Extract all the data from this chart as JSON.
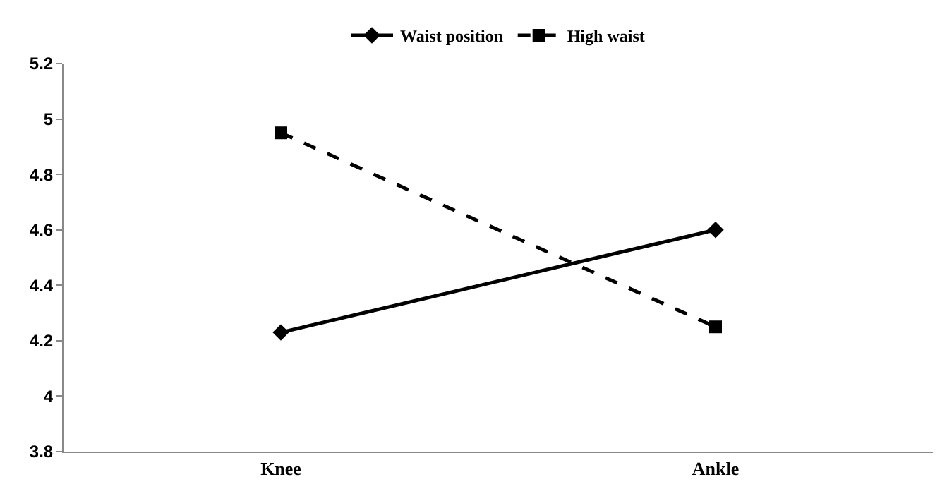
{
  "chart_data": {
    "type": "line",
    "categories": [
      "Knee",
      "Ankle"
    ],
    "series": [
      {
        "name": "Waist position",
        "color": "#000000",
        "values": [
          4.23,
          4.6
        ],
        "marker": "diamond",
        "line_style": "solid"
      },
      {
        "name": "High waist",
        "color": "#000000",
        "values": [
          4.95,
          4.25
        ],
        "marker": "square",
        "line_style": "dashed"
      }
    ],
    "ylim": [
      3.8,
      5.2
    ],
    "yticks": [
      3.8,
      4,
      4.2,
      4.4,
      4.6,
      4.8,
      5,
      5.2
    ],
    "grid": false,
    "legend": "top"
  }
}
